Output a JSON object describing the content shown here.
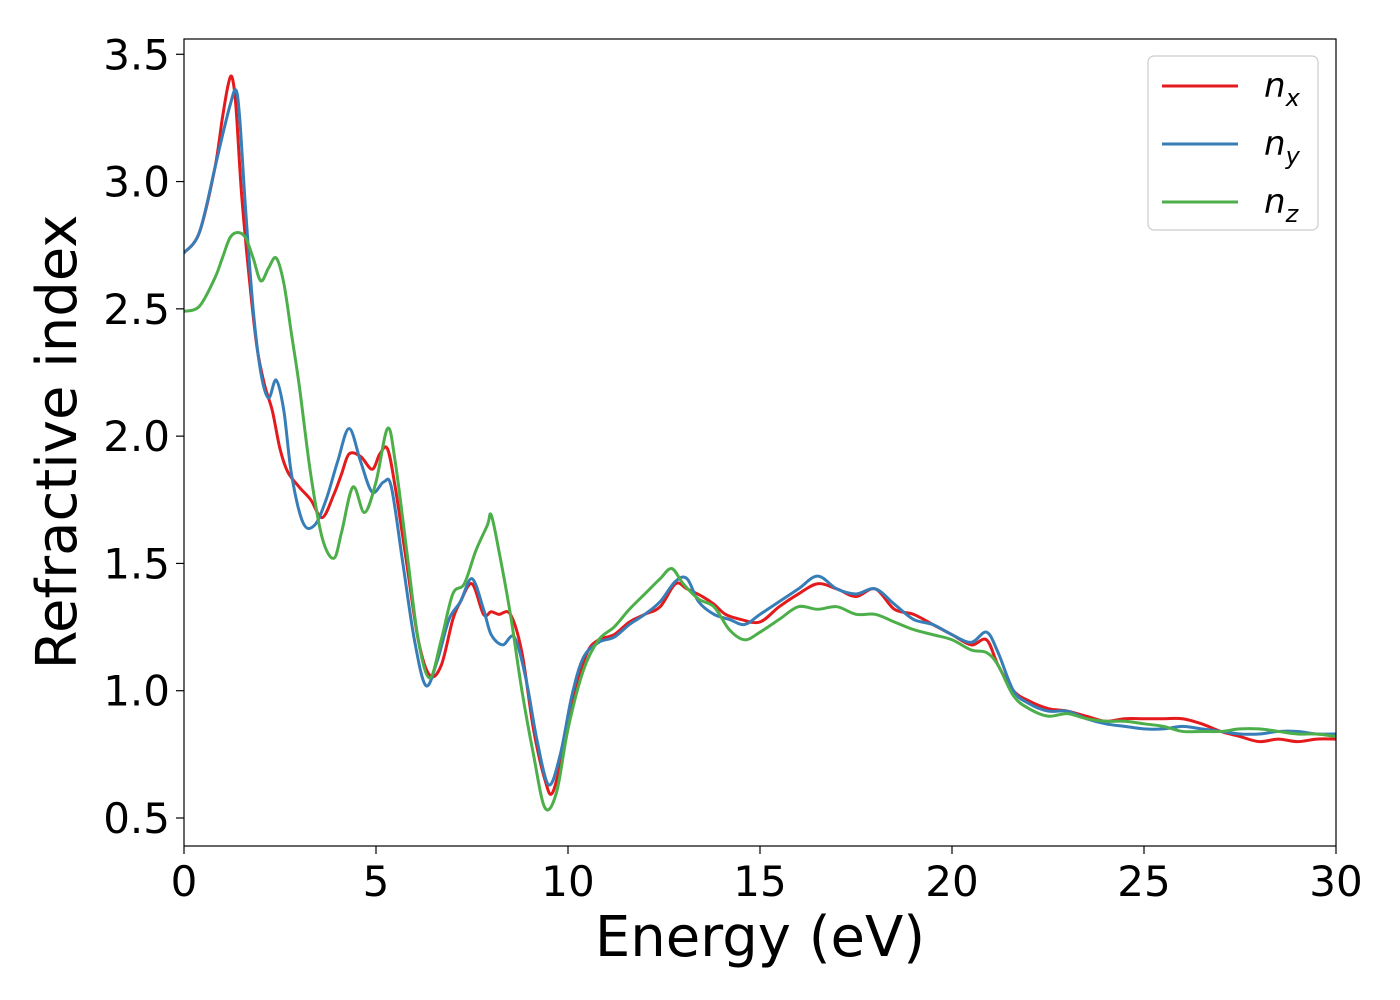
{
  "chart_data": {
    "type": "line",
    "xlabel": "Energy (eV)",
    "ylabel": "Refractive index",
    "xlim": [
      0,
      30
    ],
    "ylim": [
      0.39,
      3.56
    ],
    "xticks": [
      0,
      5,
      10,
      15,
      20,
      25,
      30
    ],
    "yticks": [
      0.5,
      1.0,
      1.5,
      2.0,
      2.5,
      3.0,
      3.5
    ],
    "xtick_labels": [
      "0",
      "5",
      "10",
      "15",
      "20",
      "25",
      "30"
    ],
    "ytick_labels": [
      "0.5",
      "1.0",
      "1.5",
      "2.0",
      "2.5",
      "3.0",
      "3.5"
    ],
    "grid": false,
    "legend_position": "top-right",
    "series": [
      {
        "name": "n",
        "subscript": "x",
        "color": "#e41a1c",
        "x": [
          0,
          0.4,
          0.8,
          1.0,
          1.15,
          1.25,
          1.35,
          1.5,
          1.7,
          1.9,
          2.1,
          2.3,
          2.5,
          2.7,
          3.0,
          3.3,
          3.6,
          3.9,
          4.1,
          4.3,
          4.6,
          4.9,
          5.1,
          5.3,
          5.5,
          5.8,
          6.1,
          6.4,
          6.7,
          7.0,
          7.2,
          7.5,
          7.8,
          8.0,
          8.2,
          8.5,
          8.8,
          9.1,
          9.4,
          9.6,
          9.9,
          10.2,
          10.5,
          10.8,
          11.2,
          11.6,
          12.0,
          12.4,
          12.8,
          13.1,
          13.5,
          13.8,
          14.1,
          14.5,
          15.0,
          15.5,
          16.0,
          16.5,
          17.0,
          17.5,
          18.0,
          18.5,
          19.0,
          19.5,
          20.0,
          20.5,
          20.9,
          21.2,
          21.6,
          22.0,
          22.5,
          23.0,
          23.5,
          24.0,
          24.5,
          25.0,
          25.5,
          26.0,
          26.5,
          27.0,
          27.5,
          28.0,
          28.5,
          29.0,
          29.5,
          30.0
        ],
        "values": [
          2.72,
          2.8,
          3.05,
          3.25,
          3.38,
          3.41,
          3.3,
          2.95,
          2.62,
          2.35,
          2.2,
          2.1,
          1.95,
          1.86,
          1.8,
          1.75,
          1.68,
          1.77,
          1.85,
          1.93,
          1.92,
          1.87,
          1.93,
          1.95,
          1.8,
          1.5,
          1.2,
          1.06,
          1.1,
          1.28,
          1.35,
          1.42,
          1.3,
          1.31,
          1.3,
          1.3,
          1.15,
          0.85,
          0.65,
          0.6,
          0.78,
          1.0,
          1.15,
          1.2,
          1.22,
          1.27,
          1.3,
          1.33,
          1.42,
          1.4,
          1.37,
          1.34,
          1.3,
          1.28,
          1.27,
          1.33,
          1.38,
          1.42,
          1.4,
          1.37,
          1.4,
          1.32,
          1.3,
          1.26,
          1.22,
          1.18,
          1.2,
          1.1,
          1.0,
          0.96,
          0.93,
          0.92,
          0.9,
          0.88,
          0.89,
          0.89,
          0.89,
          0.89,
          0.87,
          0.84,
          0.82,
          0.8,
          0.81,
          0.8,
          0.81,
          0.81
        ]
      },
      {
        "name": "n",
        "subscript": "y",
        "color": "#377eb8",
        "x": [
          0,
          0.4,
          0.8,
          1.0,
          1.2,
          1.35,
          1.45,
          1.6,
          1.8,
          2.0,
          2.2,
          2.4,
          2.6,
          2.8,
          3.1,
          3.4,
          3.7,
          4.0,
          4.3,
          4.6,
          4.9,
          5.2,
          5.4,
          5.7,
          6.0,
          6.3,
          6.6,
          6.9,
          7.2,
          7.5,
          7.8,
          8.0,
          8.3,
          8.6,
          8.9,
          9.2,
          9.5,
          9.8,
          10.1,
          10.4,
          10.8,
          11.2,
          11.6,
          12.0,
          12.4,
          12.8,
          13.1,
          13.4,
          13.8,
          14.2,
          14.6,
          15.0,
          15.5,
          16.0,
          16.5,
          17.0,
          17.5,
          18.0,
          18.5,
          19.0,
          19.5,
          20.0,
          20.5,
          20.9,
          21.2,
          21.6,
          22.0,
          22.5,
          23.0,
          23.5,
          24.0,
          24.5,
          25.0,
          25.5,
          26.0,
          26.5,
          27.0,
          27.5,
          28.0,
          28.5,
          29.0,
          29.5,
          30.0
        ],
        "values": [
          2.72,
          2.8,
          3.05,
          3.18,
          3.3,
          3.36,
          3.25,
          2.9,
          2.5,
          2.25,
          2.15,
          2.22,
          2.1,
          1.85,
          1.66,
          1.65,
          1.75,
          1.9,
          2.03,
          1.9,
          1.78,
          1.82,
          1.8,
          1.5,
          1.2,
          1.02,
          1.12,
          1.28,
          1.35,
          1.44,
          1.32,
          1.22,
          1.18,
          1.21,
          1.05,
          0.8,
          0.63,
          0.75,
          0.98,
          1.13,
          1.19,
          1.21,
          1.26,
          1.3,
          1.35,
          1.43,
          1.44,
          1.35,
          1.3,
          1.28,
          1.26,
          1.3,
          1.35,
          1.4,
          1.45,
          1.4,
          1.38,
          1.4,
          1.34,
          1.28,
          1.26,
          1.22,
          1.19,
          1.23,
          1.15,
          1.0,
          0.95,
          0.92,
          0.92,
          0.89,
          0.87,
          0.86,
          0.85,
          0.85,
          0.86,
          0.85,
          0.84,
          0.83,
          0.83,
          0.84,
          0.84,
          0.83,
          0.83
        ]
      },
      {
        "name": "n",
        "subscript": "z",
        "color": "#4daf4a",
        "x": [
          0,
          0.4,
          0.8,
          1.0,
          1.2,
          1.4,
          1.6,
          1.8,
          2.0,
          2.2,
          2.4,
          2.6,
          2.8,
          3.0,
          3.3,
          3.6,
          3.9,
          4.1,
          4.4,
          4.7,
          5.0,
          5.3,
          5.5,
          5.8,
          6.1,
          6.4,
          6.7,
          7.0,
          7.3,
          7.6,
          7.9,
          8.0,
          8.2,
          8.5,
          8.8,
          9.1,
          9.4,
          9.7,
          10.0,
          10.4,
          10.8,
          11.2,
          11.6,
          12.0,
          12.4,
          12.7,
          13.0,
          13.4,
          13.8,
          14.2,
          14.6,
          15.0,
          15.5,
          16.0,
          16.5,
          17.0,
          17.5,
          18.0,
          18.5,
          19.0,
          19.5,
          20.0,
          20.5,
          20.9,
          21.2,
          21.6,
          22.0,
          22.5,
          23.0,
          23.5,
          24.0,
          24.5,
          25.0,
          25.5,
          26.0,
          26.5,
          27.0,
          27.5,
          28.0,
          28.5,
          29.0,
          29.5,
          30.0
        ],
        "values": [
          2.49,
          2.51,
          2.62,
          2.7,
          2.78,
          2.8,
          2.78,
          2.7,
          2.61,
          2.66,
          2.7,
          2.6,
          2.4,
          2.2,
          1.85,
          1.6,
          1.52,
          1.62,
          1.8,
          1.7,
          1.82,
          2.03,
          1.9,
          1.55,
          1.2,
          1.05,
          1.2,
          1.38,
          1.42,
          1.55,
          1.65,
          1.69,
          1.55,
          1.3,
          1.0,
          0.75,
          0.54,
          0.6,
          0.85,
          1.08,
          1.2,
          1.25,
          1.32,
          1.38,
          1.44,
          1.48,
          1.42,
          1.36,
          1.33,
          1.24,
          1.2,
          1.23,
          1.28,
          1.33,
          1.32,
          1.33,
          1.3,
          1.3,
          1.27,
          1.24,
          1.22,
          1.2,
          1.16,
          1.15,
          1.1,
          0.98,
          0.93,
          0.9,
          0.91,
          0.89,
          0.88,
          0.88,
          0.87,
          0.86,
          0.84,
          0.84,
          0.84,
          0.85,
          0.85,
          0.84,
          0.83,
          0.83,
          0.82
        ]
      }
    ]
  }
}
